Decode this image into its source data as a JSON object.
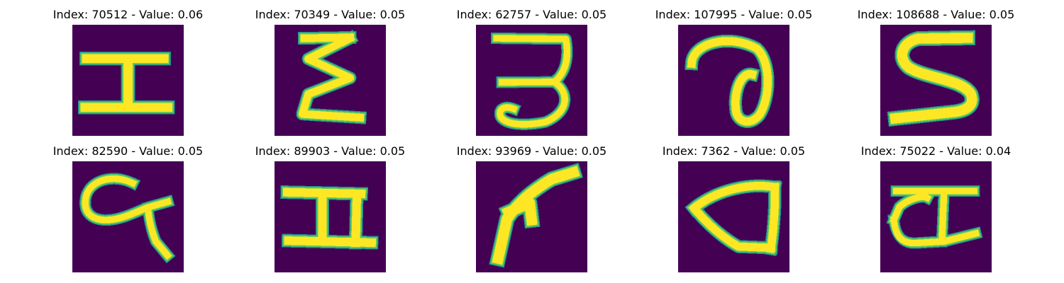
{
  "chart_data": {
    "type": "image_grid",
    "colormap": "viridis",
    "colors": {
      "background": "#440154",
      "stroke_edge": "#21918c",
      "stroke_mid": "#5ec962",
      "stroke_core": "#fde725"
    },
    "panels": [
      {
        "title": "Index: 70512 - Value: 0.06",
        "index": 70512,
        "value": 0.06
      },
      {
        "title": "Index: 70349 - Value: 0.05",
        "index": 70349,
        "value": 0.05
      },
      {
        "title": "Index: 62757 - Value: 0.05",
        "index": 62757,
        "value": 0.05
      },
      {
        "title": "Index: 107995 - Value: 0.05",
        "index": 107995,
        "value": 0.05
      },
      {
        "title": "Index: 108688 - Value: 0.05",
        "index": 108688,
        "value": 0.05
      },
      {
        "title": "Index: 82590 - Value: 0.05",
        "index": 82590,
        "value": 0.05
      },
      {
        "title": "Index: 89903 - Value: 0.05",
        "index": 89903,
        "value": 0.05
      },
      {
        "title": "Index: 93969 - Value: 0.05",
        "index": 93969,
        "value": 0.05
      },
      {
        "title": "Index: 7362 - Value: 0.05",
        "index": 7362,
        "value": 0.05
      },
      {
        "title": "Index: 75022 - Value: 0.04",
        "index": 75022,
        "value": 0.04
      }
    ]
  }
}
